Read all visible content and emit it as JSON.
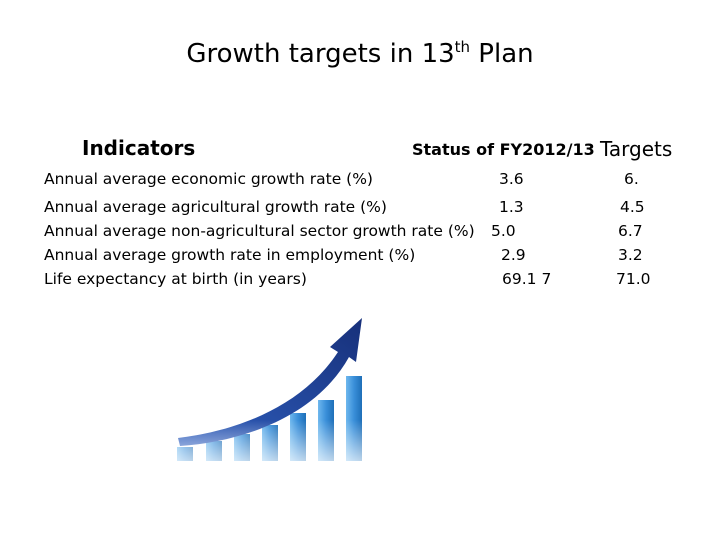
{
  "title": {
    "prefix": "Growth targets in 13",
    "sup": "th",
    "suffix": " Plan"
  },
  "headers": {
    "indicators": "Indicators",
    "status": "Status of FY2012/13",
    "targets": "Targets"
  },
  "rows": [
    {
      "label": "Annual average economic growth rate (%)",
      "status": "3.6",
      "target": "6."
    },
    {
      "label": "Annual average agricultural growth rate (%)",
      "status": "1.3",
      "target": "4.5"
    },
    {
      "label": "Annual average non-agricultural sector growth rate (%)",
      "status": "5.0",
      "target": "6.7"
    },
    {
      "label": "Annual average growth rate in employment (%)",
      "status": "2.9",
      "target": "3.2"
    },
    {
      "label": "Life expectancy at birth (in years)",
      "status": "69.1 7",
      "target": "71.0"
    }
  ],
  "graphic": {
    "icon": "growth-bar-chart-with-arrow-icon",
    "bar_color": "#3a8fd9",
    "arrow_color": "#1f3f8f"
  }
}
